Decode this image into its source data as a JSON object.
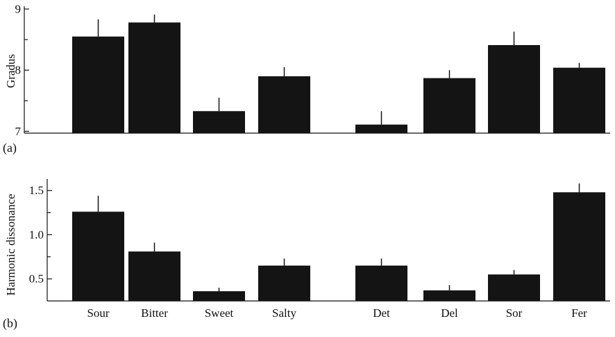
{
  "chart_data": [
    {
      "type": "bar",
      "panel_label": "(a)",
      "categories": [
        "Sour",
        "Bitter",
        "Sweet",
        "Salty",
        "Det",
        "Del",
        "Sor",
        "Fer"
      ],
      "show_category_labels": false,
      "values": [
        8.55,
        8.78,
        7.33,
        7.9,
        7.11,
        7.87,
        8.41,
        8.04
      ],
      "errors": [
        0.28,
        0.13,
        0.22,
        0.15,
        0.22,
        0.13,
        0.22,
        0.08
      ],
      "title": "",
      "xlabel": "",
      "ylabel": "Gradus",
      "ylim": [
        6.97,
        9.0
      ],
      "yticks": [
        7,
        8,
        9
      ],
      "ytick_labels": [
        "7",
        "8",
        "9"
      ],
      "minor_yticks": [
        7.5,
        8.5
      ],
      "grid": false,
      "bar_color": "#141414"
    },
    {
      "type": "bar",
      "panel_label": "(b)",
      "categories": [
        "Sour",
        "Bitter",
        "Sweet",
        "Salty",
        "Det",
        "Del",
        "Sor",
        "Fer"
      ],
      "show_category_labels": true,
      "values": [
        1.26,
        0.81,
        0.36,
        0.65,
        0.65,
        0.37,
        0.55,
        1.48
      ],
      "errors": [
        0.18,
        0.1,
        0.04,
        0.08,
        0.08,
        0.06,
        0.05,
        0.1
      ],
      "title": "",
      "xlabel": "",
      "ylabel": "Harmonic dissonance",
      "ylim": [
        0.25,
        1.6
      ],
      "yticks": [
        0.5,
        1.0,
        1.5
      ],
      "ytick_labels": [
        "0.5",
        "1.0",
        "1.5"
      ],
      "minor_yticks": [
        0.75,
        1.25
      ],
      "grid": false,
      "bar_color": "#141414"
    }
  ]
}
